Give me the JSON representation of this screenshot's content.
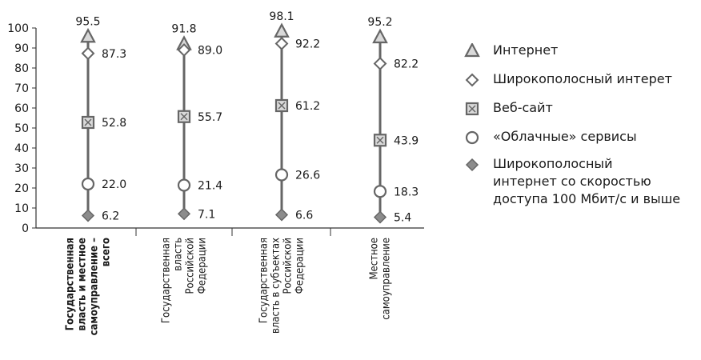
{
  "chart_data": {
    "type": "scatter",
    "categories": [
      [
        "Государственная",
        "власть и местное",
        "самоуправление –",
        "всего"
      ],
      [
        "Государственная",
        "власть",
        "Российской",
        "Федерации"
      ],
      [
        "Государственная",
        "власть в субъектах",
        "Российской",
        "Федерации"
      ],
      [
        "Местное",
        "самоуправление"
      ]
    ],
    "ylim": [
      0,
      100
    ],
    "yticks": [
      0,
      10,
      20,
      30,
      40,
      50,
      60,
      70,
      80,
      90,
      100
    ],
    "series": [
      {
        "name": "Интернет",
        "marker": "triangle",
        "values": [
          95.5,
          91.8,
          98.1,
          95.2
        ],
        "labels": [
          "95.5",
          "91.8",
          "98.1",
          "95.2"
        ]
      },
      {
        "name": "Широкополосный интерет",
        "marker": "diamond-open",
        "values": [
          87.3,
          89.0,
          92.2,
          82.2
        ],
        "labels": [
          "87.3",
          "89.0",
          "92.2",
          "82.2"
        ]
      },
      {
        "name": "Веб-сайт",
        "marker": "square-x",
        "values": [
          52.8,
          55.7,
          61.2,
          43.9
        ],
        "labels": [
          "52.8",
          "55.7",
          "61.2",
          "43.9"
        ]
      },
      {
        "name": "«Облачные» сервисы",
        "marker": "circle",
        "values": [
          22.0,
          21.4,
          26.6,
          18.3
        ],
        "labels": [
          "22.0",
          "21.4",
          "26.6",
          "18.3"
        ]
      },
      {
        "name": "Широкополосный интернет со скоростью доступа 100 Мбит/с и выше",
        "marker": "diamond-filled",
        "values": [
          6.2,
          7.1,
          6.6,
          5.4
        ],
        "labels": [
          "6.2",
          "7.1",
          "6.6",
          "5.4"
        ]
      }
    ]
  },
  "legend": {
    "items": [
      {
        "label_lines": [
          "Интернет"
        ],
        "marker": "triangle"
      },
      {
        "label_lines": [
          "Широкополосный интерет"
        ],
        "marker": "diamond-open"
      },
      {
        "label_lines": [
          "Веб-сайт"
        ],
        "marker": "square-x"
      },
      {
        "label_lines": [
          "«Облачные» сервисы"
        ],
        "marker": "circle"
      },
      {
        "label_lines": [
          "Широкополосный",
          "интернет со скоростью",
          "доступа 100 Мбит/с и выше"
        ],
        "marker": "diamond-filled"
      }
    ]
  },
  "colors": {
    "stroke": "#666666",
    "fill_light": "#d9d9d9",
    "fill_dark": "#8c8c8c",
    "text": "#1a1a1a"
  }
}
